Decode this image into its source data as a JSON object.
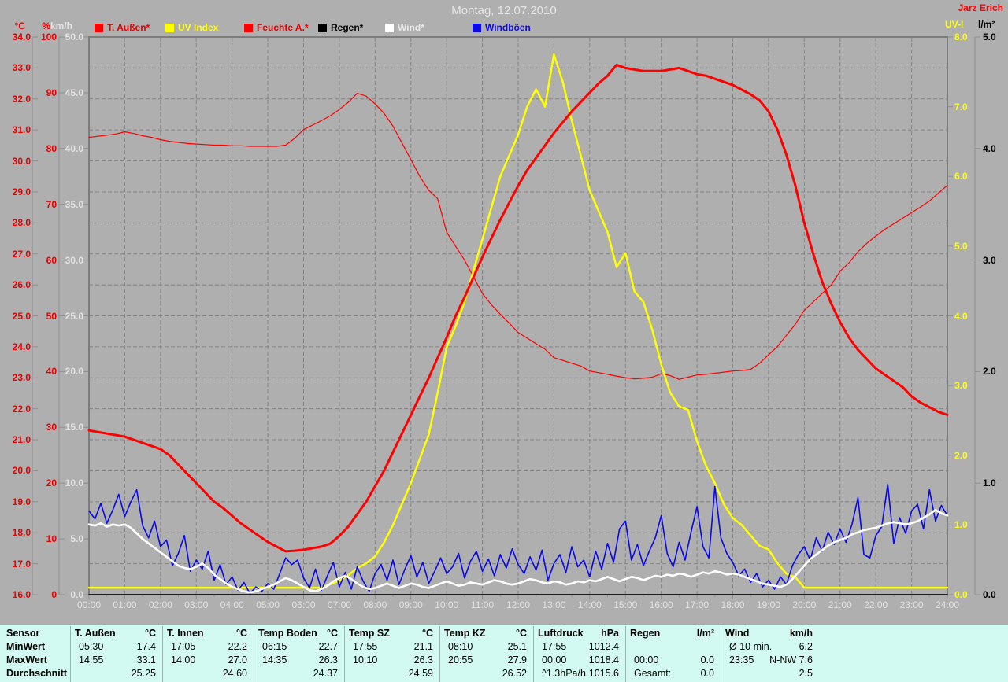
{
  "window": {
    "title": "Montag, 12.07.2010",
    "author": "Jarz Erich"
  },
  "legend": {
    "items": [
      {
        "label": "T. Außen*",
        "color": "#ff0000",
        "text_color": "#e80000"
      },
      {
        "label": "UV Index",
        "color": "#ffff00",
        "text_color": "#ffff00"
      },
      {
        "label": "Feuchte A.*",
        "color": "#ff0000",
        "text_color": "#e80000"
      },
      {
        "label": "Regen*",
        "color": "#000000",
        "text_color": "#000000"
      },
      {
        "label": "Wind*",
        "color": "#ffffff",
        "text_color": "#e8e8e8"
      },
      {
        "label": "Windböen",
        "color": "#0a0ae6",
        "text_color": "#0a0ae6"
      }
    ]
  },
  "axes": {
    "temp": {
      "unit": "°C",
      "color": "#e80000",
      "ticks": [
        "34.0",
        "33.0",
        "32.0",
        "31.0",
        "30.0",
        "29.0",
        "28.0",
        "27.0",
        "26.0",
        "25.0",
        "24.0",
        "23.0",
        "22.0",
        "21.0",
        "20.0",
        "19.0",
        "18.0",
        "17.0",
        "16.0"
      ]
    },
    "humidity": {
      "unit": "%",
      "color": "#e80000",
      "ticks": [
        "100",
        "90",
        "80",
        "70",
        "60",
        "50",
        "40",
        "30",
        "20",
        "10",
        "0"
      ]
    },
    "wind": {
      "unit": "km/h",
      "color": "#e2e2e2",
      "ticks": [
        "50.0",
        "45.0",
        "40.0",
        "35.0",
        "30.0",
        "25.0",
        "20.0",
        "15.0",
        "10.0",
        "5.0",
        "0.0"
      ]
    },
    "uv": {
      "unit": "UV-I",
      "color": "#ffff00",
      "ticks": [
        "8.0",
        "7.0",
        "6.0",
        "5.0",
        "4.0",
        "3.0",
        "2.0",
        "1.0",
        "0.0"
      ]
    },
    "rain": {
      "unit": "l/m²",
      "color": "#000000",
      "ticks": [
        "5.0",
        "4.0",
        "3.0",
        "2.0",
        "1.0",
        "0.0"
      ]
    },
    "time": {
      "ticks": [
        "00:00",
        "01:00",
        "02:00",
        "03:00",
        "04:00",
        "05:00",
        "06:00",
        "07:00",
        "08:00",
        "09:00",
        "10:00",
        "11:00",
        "12:00",
        "13:00",
        "14:00",
        "15:00",
        "16:00",
        "17:00",
        "18:00",
        "19:00",
        "20:00",
        "21:00",
        "22:00",
        "23:00",
        "24:00"
      ]
    }
  },
  "chart_data": {
    "type": "line",
    "title": "Montag, 12.07.2010",
    "x_unit": "hour",
    "x_range": [
      0,
      24
    ],
    "grid": {
      "x_step_hours": 1,
      "y_rows": 18,
      "color": "#838383"
    },
    "series": [
      {
        "name": "Regen",
        "axis": "l/m²",
        "range": [
          0,
          5
        ],
        "color": "#000000",
        "width": 1.5,
        "t0": 0,
        "dt": 24,
        "values": [
          0,
          0
        ]
      },
      {
        "name": "Feuchte A.",
        "axis": "%",
        "range": [
          0,
          100
        ],
        "color": "#ff0000",
        "width": 1.2,
        "t0": 0,
        "dt": 0.25,
        "values": [
          82.0,
          82.2,
          82.4,
          82.6,
          83.0,
          82.7,
          82.3,
          82.0,
          81.6,
          81.3,
          81.1,
          80.9,
          80.8,
          80.7,
          80.6,
          80.6,
          80.5,
          80.5,
          80.4,
          80.4,
          80.4,
          80.4,
          80.6,
          81.8,
          83.4,
          84.2,
          85.0,
          85.9,
          87.0,
          88.3,
          89.9,
          89.4,
          88.0,
          86.3,
          84.0,
          81.0,
          78.0,
          75.0,
          72.5,
          71.0,
          65.0,
          62.5,
          60.0,
          57.0,
          54.0,
          52.0,
          50.3,
          48.7,
          47.0,
          46.0,
          45.0,
          44.0,
          42.5,
          42.0,
          41.5,
          41.0,
          40.1,
          39.8,
          39.5,
          39.2,
          38.9,
          38.7,
          38.8,
          39.0,
          39.6,
          39.3,
          38.6,
          39.0,
          39.4,
          39.5,
          39.7,
          39.9,
          40.1,
          40.2,
          40.4,
          41.5,
          43.0,
          44.5,
          46.5,
          48.5,
          51.0,
          52.5,
          54.0,
          55.5,
          58.0,
          59.5,
          61.5,
          63.0,
          64.3,
          65.5,
          66.5,
          67.5,
          68.5,
          69.5,
          70.6,
          72.0,
          73.4
        ]
      },
      {
        "name": "UV Index",
        "axis": "UV-I",
        "range": [
          0,
          8
        ],
        "color": "#ffff00",
        "width": 2.5,
        "t0": 0,
        "dt": 0.25,
        "values": [
          0.1,
          0.1,
          0.1,
          0.1,
          0.1,
          0.1,
          0.1,
          0.1,
          0.1,
          0.1,
          0.1,
          0.1,
          0.1,
          0.1,
          0.1,
          0.1,
          0.1,
          0.1,
          0.1,
          0.1,
          0.1,
          0.1,
          0.1,
          0.1,
          0.1,
          0.1,
          0.1,
          0.15,
          0.2,
          0.28,
          0.38,
          0.45,
          0.55,
          0.75,
          1.0,
          1.3,
          1.6,
          1.95,
          2.3,
          2.9,
          3.55,
          3.85,
          4.2,
          4.65,
          5.1,
          5.55,
          6.0,
          6.3,
          6.6,
          7.0,
          7.25,
          7.0,
          7.75,
          7.35,
          6.8,
          6.3,
          5.8,
          5.5,
          5.2,
          4.7,
          4.9,
          4.35,
          4.2,
          3.8,
          3.3,
          2.9,
          2.7,
          2.65,
          2.2,
          1.85,
          1.6,
          1.3,
          1.1,
          1.0,
          0.85,
          0.7,
          0.65,
          0.45,
          0.3,
          0.25,
          0.1,
          0.1,
          0.1,
          0.1,
          0.1,
          0.1,
          0.1,
          0.1,
          0.1,
          0.1,
          0.1,
          0.1,
          0.1,
          0.1,
          0.1,
          0.1,
          0.1
        ]
      },
      {
        "name": "T. Außen",
        "axis": "°C",
        "range": [
          16,
          34
        ],
        "color": "#ff0000",
        "width": 3,
        "t0": 0,
        "dt": 0.25,
        "values": [
          21.3,
          21.25,
          21.2,
          21.15,
          21.1,
          21.0,
          20.9,
          20.8,
          20.7,
          20.5,
          20.2,
          19.9,
          19.6,
          19.3,
          19.0,
          18.8,
          18.55,
          18.3,
          18.1,
          17.9,
          17.7,
          17.55,
          17.4,
          17.42,
          17.45,
          17.5,
          17.55,
          17.65,
          17.9,
          18.2,
          18.6,
          19.0,
          19.5,
          20.0,
          20.6,
          21.2,
          21.8,
          22.4,
          23.0,
          23.65,
          24.3,
          25.0,
          25.6,
          26.25,
          26.9,
          27.5,
          28.1,
          28.65,
          29.2,
          29.7,
          30.1,
          30.5,
          30.9,
          31.25,
          31.6,
          31.9,
          32.2,
          32.5,
          32.75,
          33.1,
          33.0,
          32.95,
          32.9,
          32.9,
          32.9,
          32.95,
          33.0,
          32.9,
          32.8,
          32.75,
          32.65,
          32.55,
          32.45,
          32.3,
          32.15,
          31.95,
          31.6,
          31.0,
          30.2,
          29.2,
          28.0,
          27.0,
          26.1,
          25.4,
          24.8,
          24.3,
          23.9,
          23.6,
          23.3,
          23.1,
          22.9,
          22.7,
          22.4,
          22.2,
          22.05,
          21.9,
          21.8
        ]
      },
      {
        "name": "Windböen",
        "axis": "km/h",
        "range": [
          0,
          50
        ],
        "color": "#0a0ae6",
        "width": 1.6,
        "t0": 0,
        "dt": 0.1666667,
        "values": [
          7.5,
          6.8,
          8.2,
          6.4,
          7.6,
          9.0,
          7.0,
          8.3,
          9.4,
          6.2,
          5.1,
          6.6,
          4.3,
          4.9,
          2.6,
          3.7,
          5.3,
          2.1,
          3.1,
          2.3,
          3.9,
          1.3,
          2.7,
          0.9,
          1.6,
          0.4,
          1.1,
          0.1,
          0.7,
          0.3,
          1.0,
          0.5,
          1.9,
          3.3,
          2.7,
          3.1,
          1.5,
          0.6,
          2.3,
          0.4,
          1.7,
          2.9,
          0.7,
          2.0,
          0.5,
          2.5,
          1.2,
          0.3,
          1.9,
          2.7,
          1.3,
          3.1,
          0.9,
          2.3,
          3.5,
          1.6,
          2.9,
          1.0,
          2.1,
          3.3,
          1.9,
          2.5,
          3.7,
          1.5,
          3.0,
          3.9,
          2.1,
          3.2,
          1.7,
          3.6,
          2.4,
          4.1,
          2.7,
          1.9,
          3.4,
          2.2,
          4.0,
          1.3,
          2.8,
          3.6,
          2.0,
          4.3,
          2.5,
          3.1,
          1.6,
          3.9,
          2.3,
          4.6,
          2.9,
          5.9,
          6.6,
          3.1,
          4.5,
          2.6,
          3.9,
          5.1,
          7.1,
          3.7,
          2.5,
          4.7,
          3.1,
          5.6,
          7.9,
          4.3,
          3.3,
          9.7,
          5.1,
          3.7,
          2.9,
          1.7,
          2.3,
          1.1,
          1.9,
          0.7,
          1.3,
          0.5,
          1.6,
          0.9,
          2.6,
          3.6,
          4.3,
          3.1,
          5.1,
          3.9,
          5.6,
          4.5,
          5.9,
          4.7,
          6.3,
          8.7,
          3.6,
          3.3,
          5.3,
          6.1,
          9.9,
          4.6,
          6.9,
          5.5,
          7.5,
          8.1,
          5.9,
          9.4,
          6.6,
          8.0,
          7.1
        ]
      },
      {
        "name": "Wind",
        "axis": "km/h",
        "range": [
          0,
          50
        ],
        "color": "#ffffff",
        "width": 2.6,
        "t0": 0,
        "dt": 0.1666667,
        "values": [
          6.3,
          6.2,
          6.4,
          6.1,
          6.3,
          6.2,
          6.3,
          6.0,
          5.5,
          5.0,
          4.6,
          4.2,
          3.8,
          3.4,
          3.0,
          2.6,
          2.4,
          2.3,
          2.5,
          2.8,
          2.4,
          1.8,
          1.4,
          1.0,
          0.7,
          0.5,
          0.3,
          0.2,
          0.3,
          0.5,
          0.7,
          0.9,
          1.2,
          1.5,
          1.3,
          1.0,
          0.7,
          0.4,
          0.3,
          0.5,
          0.8,
          1.2,
          1.5,
          1.7,
          1.4,
          1.0,
          0.7,
          0.5,
          0.6,
          0.8,
          1.0,
          0.8,
          0.6,
          0.8,
          1.0,
          0.9,
          0.7,
          0.6,
          0.8,
          1.0,
          1.2,
          1.0,
          0.8,
          0.9,
          1.1,
          1.0,
          0.9,
          1.1,
          1.3,
          1.2,
          1.0,
          0.9,
          1.0,
          1.2,
          1.4,
          1.3,
          1.1,
          1.0,
          1.2,
          1.1,
          0.9,
          1.0,
          1.2,
          1.1,
          1.3,
          1.2,
          1.4,
          1.6,
          1.4,
          1.2,
          1.4,
          1.6,
          1.5,
          1.3,
          1.5,
          1.7,
          1.6,
          1.8,
          1.7,
          1.9,
          1.8,
          1.6,
          1.8,
          2.0,
          1.9,
          2.1,
          2.0,
          1.8,
          1.9,
          1.8,
          1.6,
          1.4,
          1.2,
          1.0,
          0.9,
          0.8,
          0.7,
          0.9,
          1.4,
          2.0,
          2.6,
          3.2,
          3.6,
          4.0,
          4.4,
          4.7,
          4.9,
          5.1,
          5.4,
          5.6,
          5.8,
          5.9,
          6.0,
          6.2,
          6.4,
          6.5,
          6.4,
          6.3,
          6.4,
          6.6,
          6.9,
          7.2,
          7.6,
          7.3,
          7.1
        ]
      }
    ]
  },
  "table": {
    "rows": [
      "Sensor",
      "MinWert",
      "MaxWert",
      "Durchschnitt"
    ],
    "columns": [
      {
        "name": "T. Außen",
        "unit": "°C",
        "min_t": "05:30",
        "min_v": "17.4",
        "max_t": "14:55",
        "max_v": "33.1",
        "avg_t": "",
        "avg_v": "25.25"
      },
      {
        "name": "T. Innen",
        "unit": "°C",
        "min_t": "17:05",
        "min_v": "22.2",
        "max_t": "14:00",
        "max_v": "27.0",
        "avg_t": "",
        "avg_v": "24.60"
      },
      {
        "name": "Temp Boden",
        "unit": "°C",
        "min_t": "06:15",
        "min_v": "22.7",
        "max_t": "14:35",
        "max_v": "26.3",
        "avg_t": "",
        "avg_v": "24.37"
      },
      {
        "name": "Temp SZ",
        "unit": "°C",
        "min_t": "17:55",
        "min_v": "21.1",
        "max_t": "10:10",
        "max_v": "26.3",
        "avg_t": "",
        "avg_v": "24.59"
      },
      {
        "name": "Temp KZ",
        "unit": "°C",
        "min_t": "08:10",
        "min_v": "25.1",
        "max_t": "20:55",
        "max_v": "27.9",
        "avg_t": "",
        "avg_v": "26.52"
      },
      {
        "name": "Luftdruck",
        "unit": "hPa",
        "min_t": "17:55",
        "min_v": "1012.4",
        "max_t": "00:00",
        "max_v": "1018.4",
        "avg_t": "^1.3hPa/h",
        "avg_v": "1015.6"
      },
      {
        "name": "Regen",
        "unit": "l/m²",
        "min_t": "",
        "min_v": "",
        "max_t": "00:00",
        "max_v": "0.0",
        "avg_t": "Gesamt:",
        "avg_v": "0.0"
      },
      {
        "name": "Wind",
        "unit": "km/h",
        "min_t": "Ø 10 min.",
        "min_v": "6.2",
        "max_t": "23:35",
        "max_v": "N-NW 7.6",
        "avg_t": "",
        "avg_v": "2.5"
      }
    ]
  }
}
